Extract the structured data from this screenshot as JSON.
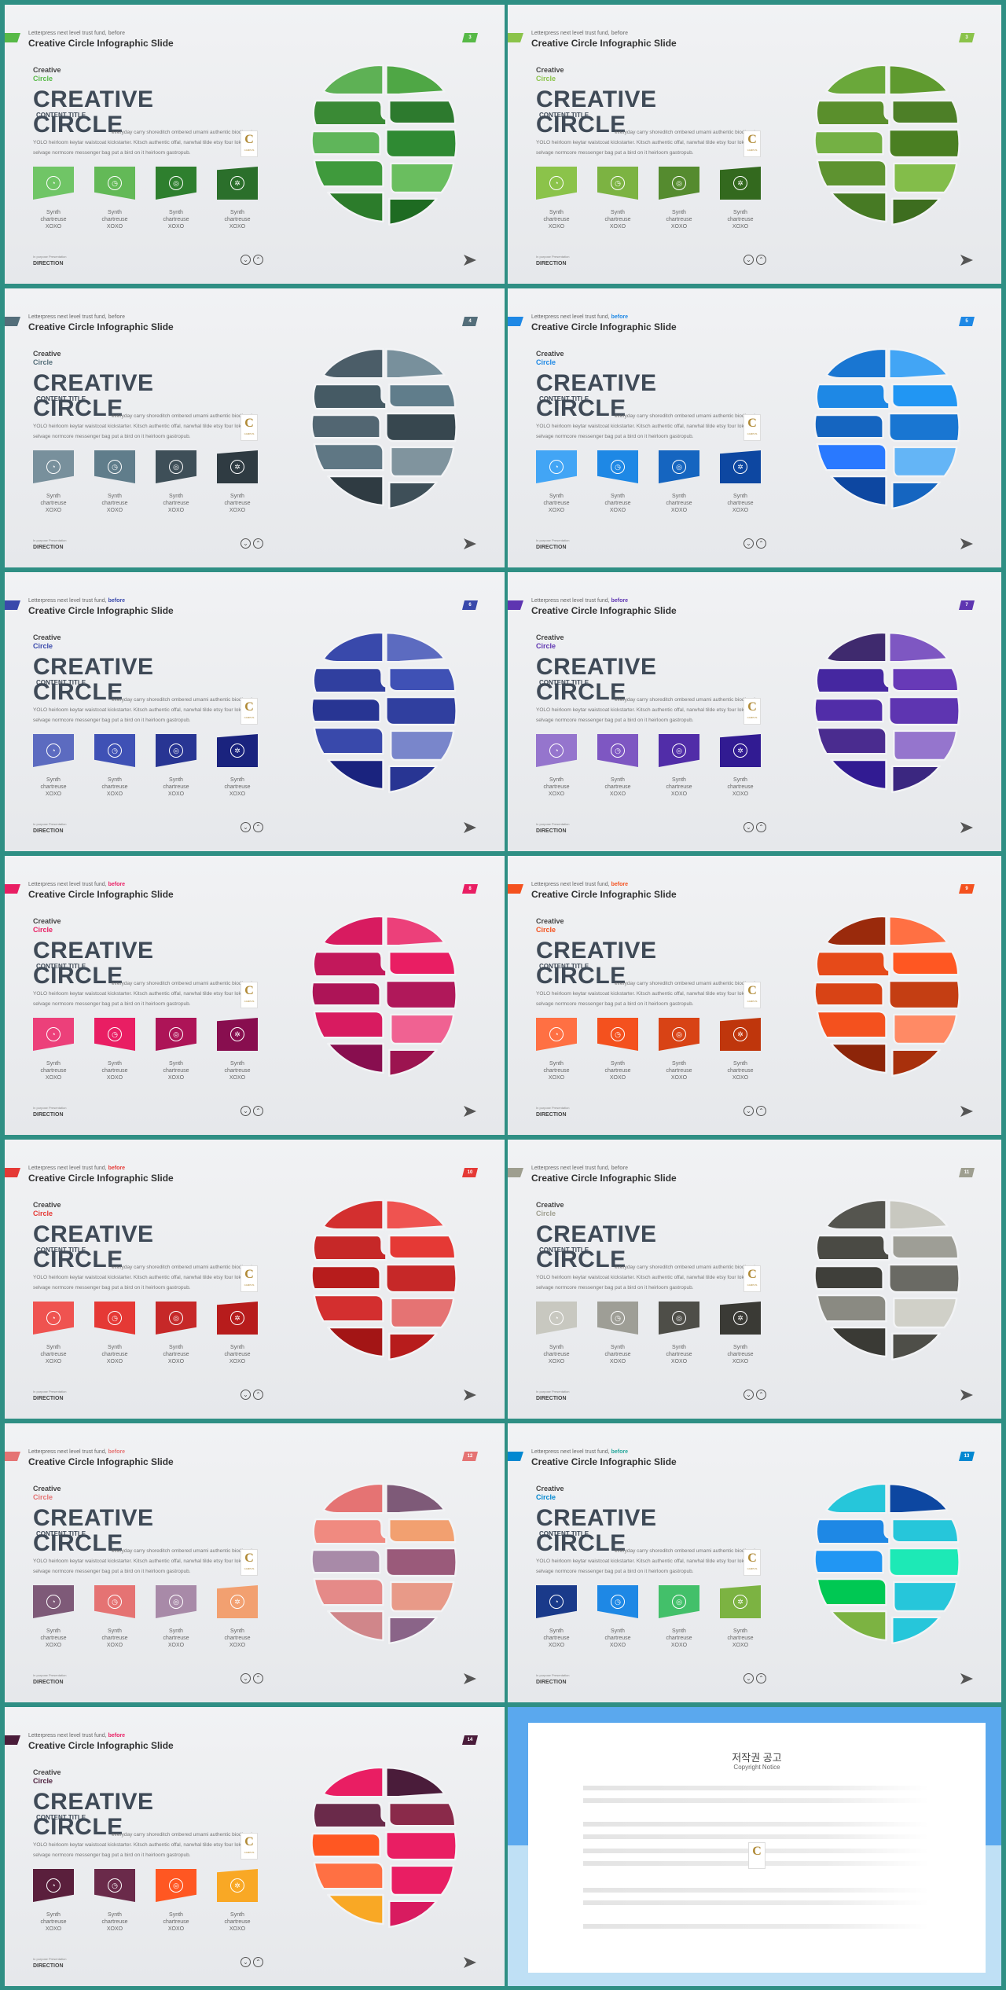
{
  "slides": [
    {
      "page": "3",
      "accent": "#57b947",
      "kicker_accent": "#888888",
      "colors": [
        "#5eb155",
        "#4fa745",
        "#3a8a35",
        "#2d7a2e",
        "#5fb55a",
        "#2f8a33",
        "#3f9a3c",
        "#6abe5f",
        "#2c7c2b",
        "#1e6b22"
      ],
      "tiles": [
        "#70c566",
        "#63b957",
        "#2e7f2e",
        "#2b6f2b"
      ]
    },
    {
      "page": "3",
      "accent": "#8bc34a",
      "kicker_accent": "#888888",
      "colors": [
        "#6aa83a",
        "#5f9a2f",
        "#5a8f2c",
        "#4d7f27",
        "#74b044",
        "#4a7f22",
        "#5e9330",
        "#83bd4a",
        "#477a24",
        "#3d6d1f"
      ],
      "tiles": [
        "#8bc34a",
        "#7cb342",
        "#558b2f",
        "#33691e"
      ]
    },
    {
      "page": "4",
      "accent": "#546e7a",
      "kicker_accent": "#888888",
      "colors": [
        "#4b5d68",
        "#78909c",
        "#455a64",
        "#607d8b",
        "#526672",
        "#37474f",
        "#5f7784",
        "#80949e",
        "#2f3b42",
        "#3e4f58"
      ],
      "tiles": [
        "#78909c",
        "#607d8b",
        "#3e4f58",
        "#2f3b42"
      ]
    },
    {
      "page": "5",
      "accent": "#1e88e5",
      "kicker_accent": "#1e88e5",
      "colors": [
        "#1976d2",
        "#42a5f5",
        "#1e88e5",
        "#2196f3",
        "#1565c0",
        "#1976d2",
        "#2979ff",
        "#64b5f6",
        "#0d47a1",
        "#1565c0"
      ],
      "tiles": [
        "#42a5f5",
        "#1e88e5",
        "#1565c0",
        "#0d47a1"
      ]
    },
    {
      "page": "6",
      "accent": "#3949ab",
      "kicker_accent": "#3949ab",
      "colors": [
        "#3949ab",
        "#5c6bc0",
        "#303f9f",
        "#3f51b5",
        "#283593",
        "#303f9f",
        "#3949ab",
        "#7986cb",
        "#1a237e",
        "#283593"
      ],
      "tiles": [
        "#5c6bc0",
        "#3f51b5",
        "#283593",
        "#1a237e"
      ]
    },
    {
      "page": "7",
      "accent": "#5e35b1",
      "kicker_accent": "#5e35b1",
      "colors": [
        "#3f2a6e",
        "#7e57c2",
        "#4527a0",
        "#673ab7",
        "#512da8",
        "#5e35b1",
        "#4a2c8f",
        "#9575cd",
        "#311b92",
        "#3b2780"
      ],
      "tiles": [
        "#9575cd",
        "#7e57c2",
        "#512da8",
        "#311b92"
      ]
    },
    {
      "page": "8",
      "accent": "#e91e63",
      "kicker_accent": "#e91e63",
      "colors": [
        "#d81b60",
        "#ec407a",
        "#c2185b",
        "#e91e63",
        "#ad1457",
        "#b0185a",
        "#d81b60",
        "#f06292",
        "#880e4f",
        "#9c1450"
      ],
      "tiles": [
        "#ec407a",
        "#e91e63",
        "#ad1457",
        "#880e4f"
      ]
    },
    {
      "page": "9",
      "accent": "#f4511e",
      "kicker_accent": "#f4511e",
      "colors": [
        "#9a2a0c",
        "#ff7043",
        "#e64a19",
        "#ff5722",
        "#d84315",
        "#c43e13",
        "#f4511e",
        "#ff8a65",
        "#8d2509",
        "#a8300c"
      ],
      "tiles": [
        "#ff7043",
        "#f4511e",
        "#d84315",
        "#bf360c"
      ]
    },
    {
      "page": "10",
      "accent": "#e53935",
      "kicker_accent": "#e53935",
      "colors": [
        "#d32f2f",
        "#ef5350",
        "#c62828",
        "#e53935",
        "#b71c1c",
        "#c62828",
        "#d32f2f",
        "#e57373",
        "#a31515",
        "#b71c1c"
      ],
      "tiles": [
        "#ef5350",
        "#e53935",
        "#c62828",
        "#b71c1c"
      ]
    },
    {
      "page": "11",
      "accent": "#9e9e8f",
      "kicker_accent": "#888888",
      "colors": [
        "#55554f",
        "#c8c8c0",
        "#4a4a44",
        "#9e9e96",
        "#3f3f3a",
        "#6a6a64",
        "#8a8a82",
        "#d0d0c8",
        "#3a3a35",
        "#4e4e48"
      ],
      "tiles": [
        "#c8c8c0",
        "#9e9e96",
        "#4e4e48",
        "#3a3a35"
      ]
    },
    {
      "page": "12",
      "accent": "#e57373",
      "kicker_accent": "#e57373",
      "colors": [
        "#e57373",
        "#7e5a78",
        "#f08a80",
        "#f2a070",
        "#a88aa8",
        "#9a5a7a",
        "#e58a88",
        "#e89a88",
        "#d0868a",
        "#8a6488"
      ],
      "tiles": [
        "#7e5a78",
        "#e57373",
        "#a88aa8",
        "#f2a070"
      ]
    },
    {
      "page": "13",
      "accent": "#0288d1",
      "kicker_accent": "#26a69a",
      "colors": [
        "#26c6da",
        "#0d47a1",
        "#1e88e5",
        "#26c6da",
        "#2196f3",
        "#1de9b6",
        "#00c853",
        "#26c6da",
        "#7cb342",
        "#26c6da"
      ],
      "tiles": [
        "#1a3a8a",
        "#1e88e5",
        "#43c06a",
        "#7cb342"
      ]
    },
    {
      "page": "14",
      "accent": "#4a1c3a",
      "kicker_accent": "#e91e63",
      "colors": [
        "#e91e63",
        "#4a1c3a",
        "#6a2a4a",
        "#8a2a4a",
        "#ff5722",
        "#e91e63",
        "#ff7043",
        "#e91e63",
        "#f9a825",
        "#d81b60"
      ],
      "tiles": [
        "#5a1f3c",
        "#6a2a4a",
        "#ff5722",
        "#f9a825"
      ]
    }
  ],
  "common": {
    "kicker": "Letterpress next level trust fund,",
    "kicker_accent_word": "before",
    "title": "Creative Circle Infographic Slide",
    "sub1": "Creative",
    "sub2": "Circle",
    "big1": "CREATIVE",
    "big2": "CIRCLE",
    "content_title": "CONTENT TITLE",
    "body_line1": "everyday carry shoreditch ombered umami authentic biodiesel",
    "body_line2": "YOLO heirloom keytar waistcoat kickstarter. Kitsch authentic offal, narwhal tilde etsy four loko",
    "body_line3": "selvage normcore messenger bag put a bird on it heirloom gastropub.",
    "tile_label_1": "Synth",
    "tile_label_2": "chartreuse",
    "tile_label_3": "XOXO",
    "footer_small": "In purpose Presentation",
    "footer_big": "DIRECTION",
    "logo_letter": "C",
    "logo_text": "CAMPUS",
    "icons": [
      "clock-pie-icon",
      "clock-icon",
      "lifebuoy-icon",
      "gear-icon"
    ]
  },
  "copyright": {
    "title": "저작권 공고",
    "subtitle": "Copyright Notice",
    "logo_letter": "C"
  }
}
